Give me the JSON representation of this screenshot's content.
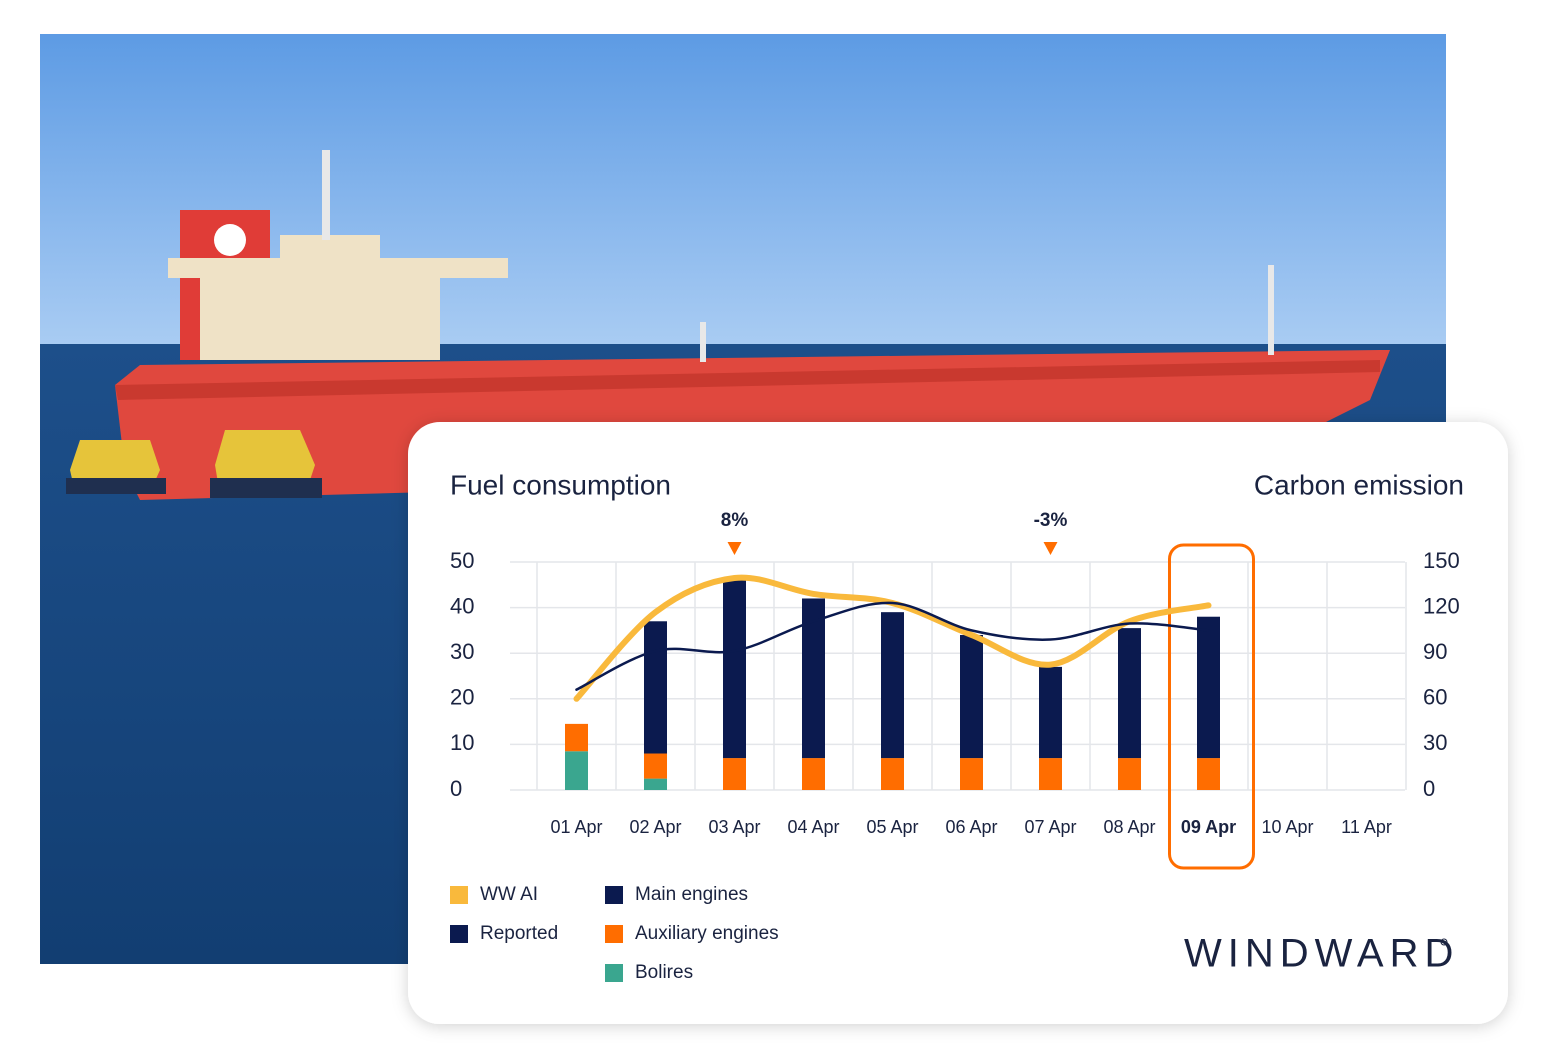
{
  "chart_data": {
    "type": "bar",
    "title": "Fuel consumption",
    "y2_title": "Carbon emission",
    "categories": [
      "01 Apr",
      "02 Apr",
      "03 Apr",
      "04 Apr",
      "05 Apr",
      "06 Apr",
      "07 Apr",
      "08 Apr",
      "09 Apr",
      "10 Apr",
      "11 Apr"
    ],
    "series": [
      {
        "name": "WW AI",
        "type": "line",
        "color": "#f9b93c",
        "values": [
          20,
          39,
          46.5,
          43,
          41,
          34,
          27.5,
          37,
          40.5,
          null,
          null
        ]
      },
      {
        "name": "Reported",
        "type": "line",
        "color": "#0b1a4f",
        "values": [
          22,
          30.5,
          30.5,
          37,
          41,
          35,
          33,
          36.5,
          35,
          null,
          null
        ]
      },
      {
        "name": "Main engines",
        "type": "bar",
        "color": "#0b1a4f",
        "values": [
          0,
          29,
          39.5,
          35,
          32,
          27,
          20,
          28.5,
          31,
          null,
          null
        ]
      },
      {
        "name": "Auxiliary engines",
        "type": "bar",
        "color": "#ff6d00",
        "values": [
          6,
          5.5,
          7,
          7,
          7,
          7,
          7,
          7,
          7,
          null,
          null
        ]
      },
      {
        "name": "Bolires",
        "type": "bar",
        "color": "#3aa68f",
        "values": [
          8.5,
          2.5,
          0,
          0,
          0,
          0,
          0,
          0,
          0,
          null,
          null
        ]
      }
    ],
    "ylim": [
      0,
      50
    ],
    "yticks": [
      0,
      10,
      20,
      30,
      40,
      50
    ],
    "y2lim": [
      0,
      150
    ],
    "y2ticks": [
      0,
      30,
      60,
      90,
      120,
      150
    ],
    "grid": true,
    "annotations": [
      {
        "index": 2,
        "text": "8%"
      },
      {
        "index": 6,
        "text": "-3%"
      }
    ],
    "highlight_index": 8
  },
  "brand": "WINDWARD"
}
